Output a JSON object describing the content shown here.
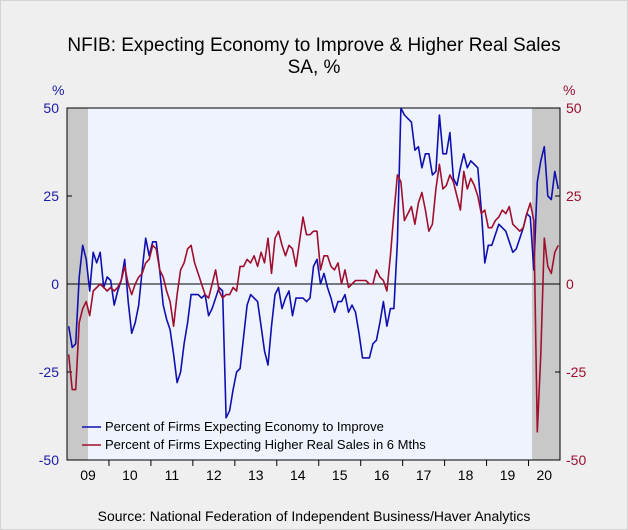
{
  "title_line1": "NFIB: Expecting Economy to Improve & Higher Real Sales",
  "title_line2": "SA, %",
  "left_unit": "%",
  "right_unit": "%",
  "source": "Source:  National Federation of Independent Business/Haver Analytics",
  "colors": {
    "background": "#efefef",
    "plot": "#eef3fe",
    "recession": "#c8c8c8",
    "series_economy": "#1010b0",
    "series_sales": "#a0102e",
    "left_axis": "#1a1aa8",
    "right_axis": "#9b1030"
  },
  "chart_data": {
    "type": "line",
    "title": "NFIB: Expecting Economy to Improve & Higher Real Sales",
    "subtitle": "SA, %",
    "xlabel": "",
    "ylabel_left": "%",
    "ylabel_right": "%",
    "x_range": [
      "2009-01",
      "2020-09"
    ],
    "ylim": [
      -50,
      50
    ],
    "yticks": [
      50,
      25,
      0,
      -25,
      -50
    ],
    "yticks_right": [
      50,
      25,
      0,
      -25,
      -50
    ],
    "xtick_labels": [
      "09",
      "10",
      "11",
      "12",
      "13",
      "14",
      "15",
      "16",
      "17",
      "18",
      "19",
      "20"
    ],
    "grid": false,
    "zero_line": true,
    "legend_position": "bottom-left",
    "recession_shading": [
      [
        "2009-01",
        "2009-06"
      ],
      [
        "2020-02",
        "2020-09"
      ]
    ],
    "series": [
      {
        "name": "Percent of Firms Expecting Economy to Improve",
        "color": "#1010b0",
        "points": [
          [
            "2009-01",
            -12
          ],
          [
            "2009-02",
            -18
          ],
          [
            "2009-03",
            -17
          ],
          [
            "2009-04",
            2
          ],
          [
            "2009-05",
            11
          ],
          [
            "2009-06",
            7
          ],
          [
            "2009-07",
            -2
          ],
          [
            "2009-08",
            9
          ],
          [
            "2009-09",
            6
          ],
          [
            "2009-10",
            9
          ],
          [
            "2009-11",
            -1
          ],
          [
            "2009-12",
            2
          ],
          [
            "2010-01",
            1
          ],
          [
            "2010-02",
            -6
          ],
          [
            "2010-03",
            -2
          ],
          [
            "2010-04",
            1
          ],
          [
            "2010-05",
            7
          ],
          [
            "2010-06",
            -5
          ],
          [
            "2010-07",
            -14
          ],
          [
            "2010-08",
            -11
          ],
          [
            "2010-09",
            -6
          ],
          [
            "2010-10",
            4
          ],
          [
            "2010-11",
            13
          ],
          [
            "2010-12",
            8
          ],
          [
            "2011-01",
            12
          ],
          [
            "2011-02",
            12
          ],
          [
            "2011-03",
            4
          ],
          [
            "2011-04",
            -6
          ],
          [
            "2011-05",
            -10
          ],
          [
            "2011-06",
            -13
          ],
          [
            "2011-07",
            -20
          ],
          [
            "2011-08",
            -28
          ],
          [
            "2011-09",
            -25
          ],
          [
            "2011-10",
            -17
          ],
          [
            "2011-11",
            -11
          ],
          [
            "2011-12",
            -3
          ],
          [
            "2012-01",
            -3
          ],
          [
            "2012-02",
            -3
          ],
          [
            "2012-03",
            -4
          ],
          [
            "2012-04",
            -3
          ],
          [
            "2012-05",
            -9
          ],
          [
            "2012-06",
            -7
          ],
          [
            "2012-07",
            -4
          ],
          [
            "2012-08",
            -1
          ],
          [
            "2012-09",
            -2
          ],
          [
            "2012-10",
            -38
          ],
          [
            "2012-11",
            -36
          ],
          [
            "2012-12",
            -30
          ],
          [
            "2013-01",
            -25
          ],
          [
            "2013-02",
            -24
          ],
          [
            "2013-03",
            -15
          ],
          [
            "2013-04",
            -6
          ],
          [
            "2013-05",
            -3
          ],
          [
            "2013-06",
            -4
          ],
          [
            "2013-07",
            -5
          ],
          [
            "2013-08",
            -12
          ],
          [
            "2013-09",
            -19
          ],
          [
            "2013-10",
            -23
          ],
          [
            "2013-11",
            -12
          ],
          [
            "2013-12",
            -3
          ],
          [
            "2014-01",
            -1
          ],
          [
            "2014-02",
            -7
          ],
          [
            "2014-03",
            -4
          ],
          [
            "2014-04",
            -2
          ],
          [
            "2014-05",
            -9
          ],
          [
            "2014-06",
            -4
          ],
          [
            "2014-07",
            -4
          ],
          [
            "2014-08",
            -4
          ],
          [
            "2014-09",
            -5
          ],
          [
            "2014-10",
            -4
          ],
          [
            "2014-11",
            5
          ],
          [
            "2014-12",
            7
          ],
          [
            "2015-01",
            0
          ],
          [
            "2015-02",
            3
          ],
          [
            "2015-03",
            -1
          ],
          [
            "2015-04",
            -4
          ],
          [
            "2015-05",
            -8
          ],
          [
            "2015-06",
            -5
          ],
          [
            "2015-07",
            -5
          ],
          [
            "2015-08",
            -3
          ],
          [
            "2015-09",
            -8
          ],
          [
            "2015-10",
            -6
          ],
          [
            "2015-11",
            -8
          ],
          [
            "2015-12",
            -14
          ],
          [
            "2016-01",
            -21
          ],
          [
            "2016-02",
            -21
          ],
          [
            "2016-03",
            -21
          ],
          [
            "2016-04",
            -17
          ],
          [
            "2016-05",
            -16
          ],
          [
            "2016-06",
            -11
          ],
          [
            "2016-07",
            -5
          ],
          [
            "2016-08",
            -12
          ],
          [
            "2016-09",
            -7
          ],
          [
            "2016-10",
            -7
          ],
          [
            "2016-11",
            12
          ],
          [
            "2016-12",
            50
          ],
          [
            "2017-01",
            48
          ],
          [
            "2017-02",
            47
          ],
          [
            "2017-03",
            46
          ],
          [
            "2017-04",
            38
          ],
          [
            "2017-05",
            39
          ],
          [
            "2017-06",
            33
          ],
          [
            "2017-07",
            37
          ],
          [
            "2017-08",
            37
          ],
          [
            "2017-09",
            31
          ],
          [
            "2017-10",
            32
          ],
          [
            "2017-11",
            48
          ],
          [
            "2017-12",
            37
          ],
          [
            "2018-01",
            37
          ],
          [
            "2018-02",
            43
          ],
          [
            "2018-03",
            30
          ],
          [
            "2018-04",
            28
          ],
          [
            "2018-05",
            33
          ],
          [
            "2018-06",
            37
          ],
          [
            "2018-07",
            33
          ],
          [
            "2018-08",
            35
          ],
          [
            "2018-09",
            34
          ],
          [
            "2018-10",
            33
          ],
          [
            "2018-11",
            21
          ],
          [
            "2018-12",
            6
          ],
          [
            "2019-01",
            11
          ],
          [
            "2019-02",
            11
          ],
          [
            "2019-03",
            14
          ],
          [
            "2019-04",
            17
          ],
          [
            "2019-05",
            16
          ],
          [
            "2019-06",
            15
          ],
          [
            "2019-07",
            12
          ],
          [
            "2019-08",
            9
          ],
          [
            "2019-09",
            10
          ],
          [
            "2019-10",
            13
          ],
          [
            "2019-11",
            16
          ],
          [
            "2019-12",
            20
          ],
          [
            "2020-01",
            19
          ],
          [
            "2020-02",
            4
          ],
          [
            "2020-03",
            29
          ],
          [
            "2020-04",
            35
          ],
          [
            "2020-05",
            39
          ],
          [
            "2020-06",
            25
          ],
          [
            "2020-07",
            24
          ],
          [
            "2020-08",
            32
          ],
          [
            "2020-09",
            27
          ]
        ]
      },
      {
        "name": "Percent of Firms Expecting Higher Real Sales in 6 Mths",
        "color": "#a0102e",
        "points": [
          [
            "2009-01",
            -20
          ],
          [
            "2009-02",
            -30
          ],
          [
            "2009-03",
            -30
          ],
          [
            "2009-04",
            -11
          ],
          [
            "2009-05",
            -7
          ],
          [
            "2009-06",
            -5
          ],
          [
            "2009-07",
            -9
          ],
          [
            "2009-08",
            -2
          ],
          [
            "2009-09",
            -1
          ],
          [
            "2009-10",
            0
          ],
          [
            "2009-11",
            -1
          ],
          [
            "2009-12",
            -2
          ],
          [
            "2010-01",
            -1
          ],
          [
            "2010-02",
            -2
          ],
          [
            "2010-03",
            -1
          ],
          [
            "2010-04",
            1
          ],
          [
            "2010-05",
            5
          ],
          [
            "2010-06",
            0
          ],
          [
            "2010-07",
            -3
          ],
          [
            "2010-08",
            0
          ],
          [
            "2010-09",
            2
          ],
          [
            "2010-10",
            3
          ],
          [
            "2010-11",
            6
          ],
          [
            "2010-12",
            7
          ],
          [
            "2011-01",
            11
          ],
          [
            "2011-02",
            10
          ],
          [
            "2011-03",
            4
          ],
          [
            "2011-04",
            2
          ],
          [
            "2011-05",
            -2
          ],
          [
            "2011-06",
            -5
          ],
          [
            "2011-07",
            -12
          ],
          [
            "2011-08",
            -3
          ],
          [
            "2011-09",
            4
          ],
          [
            "2011-10",
            6
          ],
          [
            "2011-11",
            10
          ],
          [
            "2011-12",
            11
          ],
          [
            "2012-01",
            6
          ],
          [
            "2012-02",
            3
          ],
          [
            "2012-03",
            0
          ],
          [
            "2012-04",
            -3
          ],
          [
            "2012-05",
            -4
          ],
          [
            "2012-06",
            0
          ],
          [
            "2012-07",
            4
          ],
          [
            "2012-08",
            -2
          ],
          [
            "2012-09",
            -4
          ],
          [
            "2012-10",
            -3
          ],
          [
            "2012-11",
            -3
          ],
          [
            "2012-12",
            -1
          ],
          [
            "2013-01",
            -2
          ],
          [
            "2013-02",
            5
          ],
          [
            "2013-03",
            5
          ],
          [
            "2013-04",
            7
          ],
          [
            "2013-05",
            6
          ],
          [
            "2013-06",
            8
          ],
          [
            "2013-07",
            5
          ],
          [
            "2013-08",
            9
          ],
          [
            "2013-09",
            6
          ],
          [
            "2013-10",
            13
          ],
          [
            "2013-11",
            3
          ],
          [
            "2013-12",
            13
          ],
          [
            "2014-01",
            15
          ],
          [
            "2014-02",
            11
          ],
          [
            "2014-03",
            8
          ],
          [
            "2014-04",
            11
          ],
          [
            "2014-05",
            10
          ],
          [
            "2014-06",
            5
          ],
          [
            "2014-07",
            12
          ],
          [
            "2014-08",
            19
          ],
          [
            "2014-09",
            14
          ],
          [
            "2014-10",
            14
          ],
          [
            "2014-11",
            15
          ],
          [
            "2014-12",
            15
          ],
          [
            "2015-01",
            4
          ],
          [
            "2015-02",
            8
          ],
          [
            "2015-03",
            8
          ],
          [
            "2015-04",
            5
          ],
          [
            "2015-05",
            4
          ],
          [
            "2015-06",
            6
          ],
          [
            "2015-07",
            0
          ],
          [
            "2015-08",
            4
          ],
          [
            "2015-09",
            -1
          ],
          [
            "2015-10",
            0
          ],
          [
            "2015-11",
            1
          ],
          [
            "2015-12",
            1
          ],
          [
            "2016-01",
            1
          ],
          [
            "2016-02",
            1
          ],
          [
            "2016-03",
            0
          ],
          [
            "2016-04",
            0
          ],
          [
            "2016-05",
            4
          ],
          [
            "2016-06",
            2
          ],
          [
            "2016-07",
            1
          ],
          [
            "2016-08",
            -2
          ],
          [
            "2016-09",
            8
          ],
          [
            "2016-10",
            20
          ],
          [
            "2016-11",
            31
          ],
          [
            "2016-12",
            29
          ],
          [
            "2017-01",
            18
          ],
          [
            "2017-02",
            20
          ],
          [
            "2017-03",
            22
          ],
          [
            "2017-04",
            17
          ],
          [
            "2017-05",
            23
          ],
          [
            "2017-06",
            26
          ],
          [
            "2017-07",
            21
          ],
          [
            "2017-08",
            15
          ],
          [
            "2017-09",
            17
          ],
          [
            "2017-10",
            27
          ],
          [
            "2017-11",
            34
          ],
          [
            "2017-12",
            27
          ],
          [
            "2018-01",
            28
          ],
          [
            "2018-02",
            31
          ],
          [
            "2018-03",
            29
          ],
          [
            "2018-04",
            25
          ],
          [
            "2018-05",
            21
          ],
          [
            "2018-06",
            32
          ],
          [
            "2018-07",
            27
          ],
          [
            "2018-08",
            30
          ],
          [
            "2018-09",
            28
          ],
          [
            "2018-10",
            25
          ],
          [
            "2018-11",
            20
          ],
          [
            "2018-12",
            21
          ],
          [
            "2019-01",
            16
          ],
          [
            "2019-02",
            16
          ],
          [
            "2019-03",
            18
          ],
          [
            "2019-04",
            19
          ],
          [
            "2019-05",
            21
          ],
          [
            "2019-06",
            20
          ],
          [
            "2019-07",
            22
          ],
          [
            "2019-08",
            17
          ],
          [
            "2019-09",
            16
          ],
          [
            "2019-10",
            15
          ],
          [
            "2019-11",
            16
          ],
          [
            "2019-12",
            20
          ],
          [
            "2020-01",
            23
          ],
          [
            "2020-02",
            18
          ],
          [
            "2020-03",
            -42
          ],
          [
            "2020-04",
            -20
          ],
          [
            "2020-05",
            13
          ],
          [
            "2020-06",
            5
          ],
          [
            "2020-07",
            3
          ],
          [
            "2020-08",
            9
          ],
          [
            "2020-09",
            11
          ]
        ]
      }
    ]
  }
}
